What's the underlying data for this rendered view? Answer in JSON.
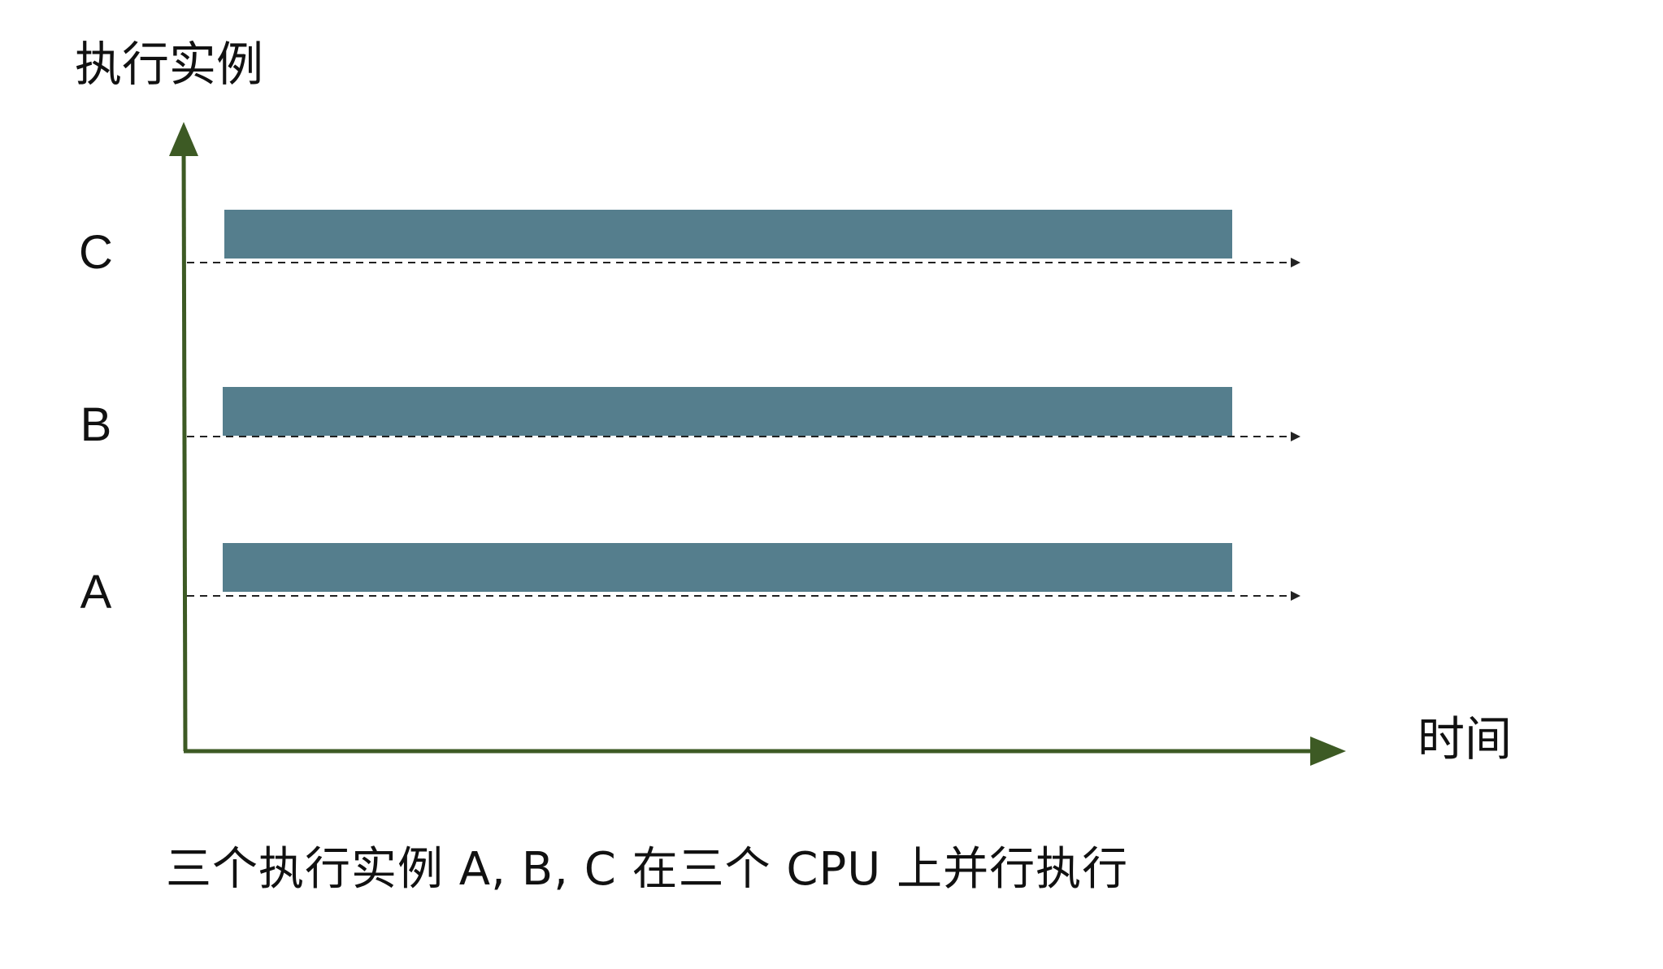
{
  "diagram": {
    "y_axis_title": "执行实例",
    "x_axis_title": "时间",
    "instances": [
      {
        "label": "C"
      },
      {
        "label": "B"
      },
      {
        "label": "A"
      }
    ],
    "caption": "三个执行实例 A, B, C 在三个 CPU 上并行执行",
    "colors": {
      "axis": "#3d5a24",
      "bar": "#557e8d",
      "dashed_line": "#222222"
    }
  }
}
